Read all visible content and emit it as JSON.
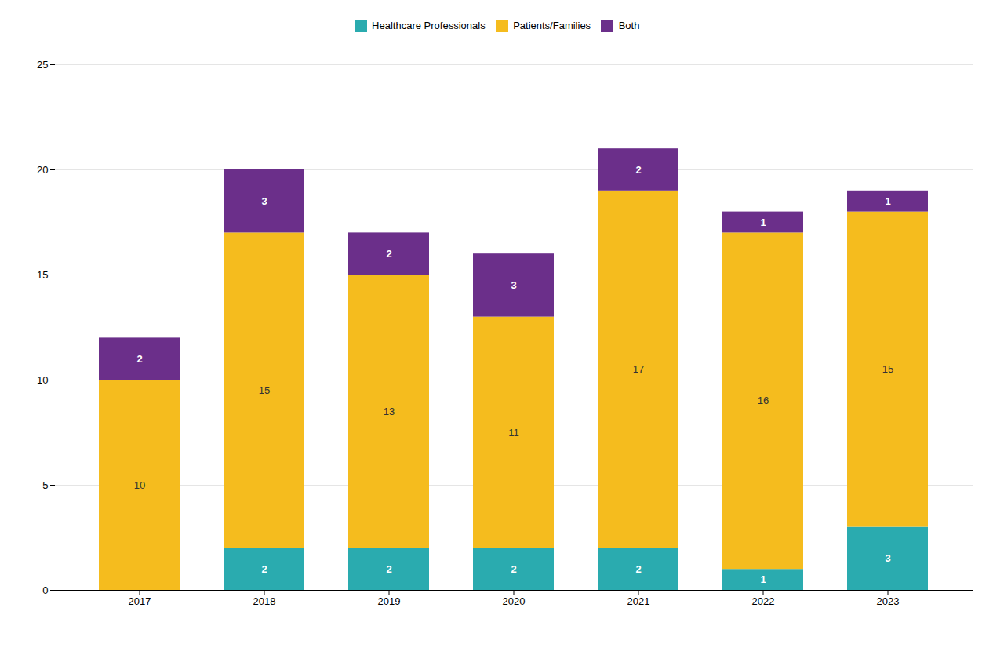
{
  "chart_data": {
    "type": "bar",
    "stacked": true,
    "categories": [
      "2017",
      "2018",
      "2019",
      "2020",
      "2021",
      "2022",
      "2023"
    ],
    "series": [
      {
        "name": "Healthcare Professionals",
        "color": "#2aabaf",
        "values": [
          0,
          2,
          2,
          2,
          2,
          1,
          3
        ]
      },
      {
        "name": "Patients/Families",
        "color": "#f5bc1e",
        "values": [
          10,
          15,
          13,
          11,
          17,
          16,
          15
        ]
      },
      {
        "name": "Both",
        "color": "#6b2f8a",
        "values": [
          2,
          3,
          2,
          3,
          2,
          1,
          1
        ]
      }
    ],
    "ylim": [
      0,
      25
    ],
    "yticks": [
      0,
      5,
      10,
      15,
      20,
      25
    ],
    "grid": true,
    "legend": "top",
    "data_labels": true
  }
}
